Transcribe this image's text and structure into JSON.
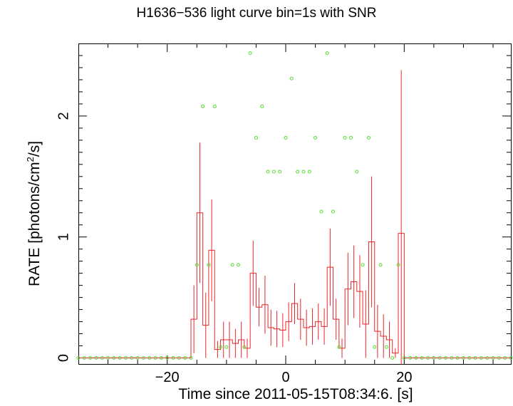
{
  "chart_data": {
    "type": "line",
    "title": "H1636−536 light curve bin=1s with SNR",
    "xlabel": "Time since 2011-05-15T08:34:6. [s]",
    "ylabel": {
      "prefix": "RATE [photons/cm",
      "sup": "2",
      "suffix": "/s]"
    },
    "xlim": [
      -35,
      38
    ],
    "ylim": [
      -0.05,
      2.6
    ],
    "x_ticks": [
      -20,
      0,
      20
    ],
    "x_tick_labels": [
      "−20",
      "0",
      "20"
    ],
    "y_ticks": [
      0,
      1,
      2
    ],
    "y_tick_labels": [
      "0",
      "1",
      "2"
    ],
    "grid": false,
    "series": [
      {
        "kind": "step_with_errors",
        "color": "#e8262a",
        "x": [
          -16,
          -15,
          -14,
          -13,
          -12,
          -11,
          -10,
          -9,
          -8,
          -7,
          -6,
          -5,
          -4,
          -3,
          -2,
          -1,
          0,
          1,
          2,
          3,
          4,
          5,
          6,
          7,
          8,
          9,
          10,
          11,
          12,
          13,
          14,
          15,
          16,
          17,
          18,
          19
        ],
        "values": [
          0.32,
          1.2,
          0.27,
          0.89,
          0.07,
          0.15,
          0.15,
          0.12,
          0.15,
          0.08,
          0.7,
          0.42,
          0.44,
          0.25,
          0.24,
          0.23,
          0.3,
          0.45,
          0.32,
          0.25,
          0.26,
          0.3,
          0.26,
          0.75,
          0.32,
          0.08,
          0.57,
          0.63,
          0.55,
          0.28,
          0.96,
          0.22,
          0.18,
          0.15,
          0.04,
          1.03
        ],
        "errors": [
          0.28,
          0.58,
          0.27,
          0.42,
          0.07,
          0.15,
          0.15,
          0.12,
          0.15,
          0.08,
          0.27,
          0.16,
          0.24,
          0.15,
          0.15,
          0.14,
          0.16,
          0.17,
          0.17,
          0.15,
          0.15,
          0.15,
          0.15,
          0.32,
          0.17,
          0.08,
          0.3,
          0.3,
          0.3,
          0.28,
          0.54,
          0.22,
          0.18,
          0.15,
          0.04,
          1.35
        ]
      },
      {
        "kind": "scatter",
        "color": "#55dd33",
        "x": [
          -35,
          -34,
          -33,
          -32,
          -31,
          -30,
          -29,
          -28,
          -27,
          -26,
          -25,
          -24,
          -23,
          -22,
          -21,
          -20,
          -19,
          -18,
          -17,
          -16,
          -15,
          -14,
          -13,
          -12,
          -11,
          -10,
          -9,
          -8,
          -7,
          -6,
          -5,
          -4,
          -3,
          -2,
          -1,
          0,
          1,
          2,
          3,
          4,
          5,
          6,
          7,
          8,
          9,
          10,
          11,
          12,
          13,
          14,
          15,
          16,
          17,
          18,
          19,
          20,
          21,
          22,
          23,
          24,
          25,
          26,
          27,
          28,
          29,
          30,
          31,
          32,
          33,
          34,
          35,
          36,
          37,
          38
        ],
        "values": [
          0,
          0,
          0,
          0,
          0,
          0,
          0,
          0,
          0,
          0,
          0,
          0,
          0,
          0,
          0,
          0,
          0,
          0,
          0,
          0,
          0.77,
          2.08,
          0.77,
          2.08,
          0.09,
          0.09,
          0.77,
          0.77,
          0.09,
          2.52,
          1.82,
          2.08,
          1.54,
          1.54,
          1.54,
          1.82,
          2.31,
          1.54,
          1.54,
          1.54,
          1.82,
          1.21,
          2.52,
          1.21,
          0.09,
          1.82,
          1.82,
          1.54,
          0.77,
          1.82,
          0.09,
          0.77,
          0.09,
          0,
          0.77,
          0,
          0,
          0,
          0,
          0,
          0,
          0,
          0,
          0,
          0,
          0,
          0,
          0,
          0,
          0,
          0,
          0,
          0,
          0
        ]
      }
    ]
  }
}
